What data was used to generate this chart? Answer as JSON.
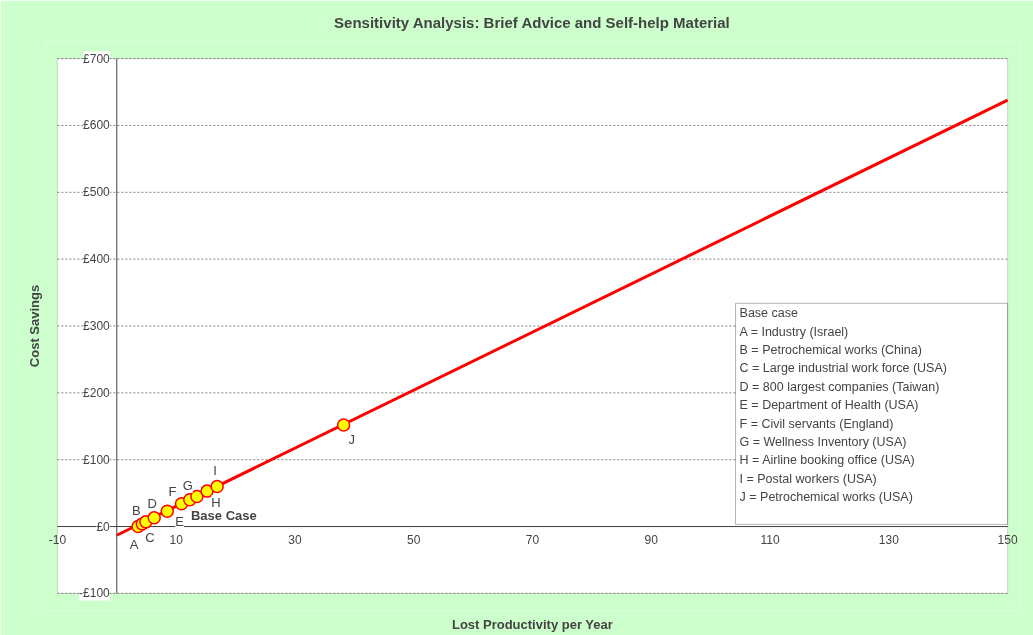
{
  "chart_data": {
    "type": "scatter",
    "title": "Sensitivity Analysis: Brief Advice and Self-help Material",
    "xlabel": "Lost Productivity per Year",
    "ylabel": "Cost Savings",
    "xlim": [
      -10,
      150
    ],
    "ylim": [
      -100,
      700
    ],
    "xticks": [
      -10,
      10,
      30,
      50,
      70,
      90,
      110,
      130,
      150
    ],
    "yticks": [
      {
        "value": -100,
        "label": "-£100"
      },
      {
        "value": 0,
        "label": "£0"
      },
      {
        "value": 100,
        "label": "£100"
      },
      {
        "value": 200,
        "label": "£200"
      },
      {
        "value": 300,
        "label": "£300"
      },
      {
        "value": 400,
        "label": "£400"
      },
      {
        "value": 500,
        "label": "£500"
      },
      {
        "value": 600,
        "label": "£600"
      },
      {
        "value": 700,
        "label": "£700"
      }
    ],
    "grid": "y",
    "series": [
      {
        "type": "line",
        "marker": "none",
        "color": "#ff0000",
        "x": [
          0,
          150
        ],
        "values": [
          -13,
          638
        ]
      },
      {
        "marker": "circle",
        "color": "#ffff00",
        "x": [
          3.6,
          4.3,
          4.9,
          6.3,
          8.5,
          10.9,
          12.3,
          13.5,
          15.2,
          16.9,
          38.2
        ],
        "values": [
          0,
          4,
          7,
          13,
          23,
          34,
          40,
          45,
          53,
          60,
          152
        ]
      }
    ],
    "annotations": [
      {
        "text": "A",
        "x": 3.6,
        "y": 0
      },
      {
        "text": "B",
        "x": 4.3,
        "y": 4
      },
      {
        "text": "C",
        "x": 4.9,
        "y": 7
      },
      {
        "text": "D",
        "x": 6.3,
        "y": 13
      },
      {
        "text": "E",
        "x": 8.5,
        "y": 23
      },
      {
        "text": "F",
        "x": 10.9,
        "y": 34
      },
      {
        "text": "G",
        "x": 12.3,
        "y": 40
      },
      {
        "text": "Base Case",
        "x": 13.5,
        "y": 45
      },
      {
        "text": "H",
        "x": 15.2,
        "y": 53
      },
      {
        "text": "I",
        "x": 16.9,
        "y": 60
      },
      {
        "text": "J",
        "x": 38.2,
        "y": 152
      },
      "Base case",
      "A = Industry (Israel)",
      "B = Petrochemical works (China)",
      "C = Large industrial work force (USA)",
      "D = 800 largest companies (Taiwan)",
      "E = Department of Health (USA)",
      "F = Civil servants (England)",
      "G = Wellness Inventory (USA)",
      "H = Airline booking office (USA)",
      "I = Postal workers (USA)",
      "J = Petrochemical works (USA)"
    ]
  }
}
